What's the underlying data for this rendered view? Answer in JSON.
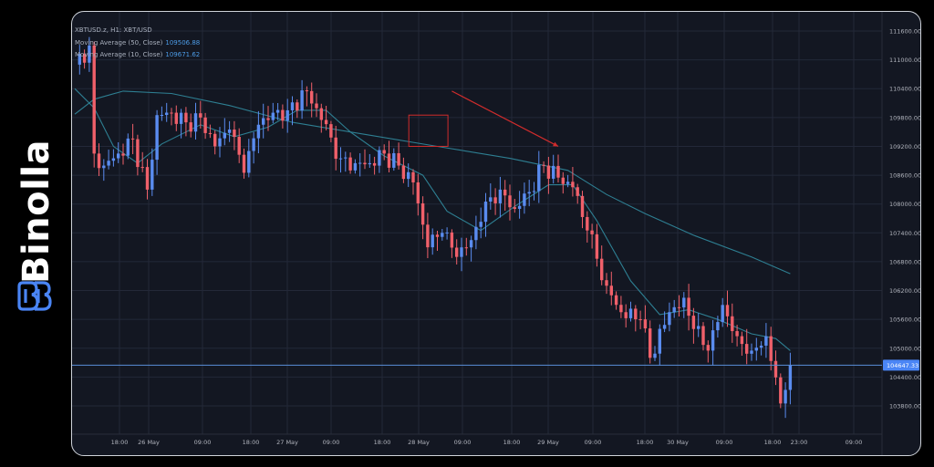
{
  "brand": {
    "name": "Binolla",
    "logo_icon": "binolla-logo-icon"
  },
  "legend": {
    "symbol": "XBTUSD.z, H1: XBT/USD",
    "ma50_label": "Moving Average (50, Close)",
    "ma50_value": "109506.88",
    "ma10_label": "Moving Average (10, Close)",
    "ma10_value": "109671.62"
  },
  "colors": {
    "background": "#131722",
    "bull": "#5a8cf0",
    "bear": "#f0606a",
    "ma": "#2e7f92",
    "price_line": "#5a8ed8",
    "annotation": "#d02c2c",
    "grid": "#232838"
  },
  "chart_data": {
    "type": "candlestick",
    "title": "",
    "xlabel": "",
    "ylabel": "",
    "ylim": [
      103400,
      111800
    ],
    "y_ticks": [
      "111600.00",
      "111000.00",
      "110400.00",
      "109800.00",
      "109200.00",
      "108600.00",
      "108000.00",
      "107400.00",
      "106800.00",
      "106200.00",
      "105600.00",
      "105000.00",
      "104400.00",
      "103800.00"
    ],
    "x_ticks": [
      "18:00",
      "26 May",
      "09:00",
      "18:00",
      "27 May",
      "09:00",
      "18:00",
      "28 May",
      "09:00",
      "18:00",
      "29 May",
      "09:00",
      "18:00",
      "30 May",
      "09:00",
      "18:00",
      "23:00",
      "09:00"
    ],
    "current_price": "104647.33",
    "close_anchors": [
      [
        0,
        110900
      ],
      [
        3,
        111300
      ],
      [
        4,
        109050
      ],
      [
        6,
        108800
      ],
      [
        9,
        109050
      ],
      [
        12,
        109350
      ],
      [
        15,
        108300
      ],
      [
        17,
        109850
      ],
      [
        20,
        109900
      ],
      [
        23,
        109700
      ],
      [
        26,
        109800
      ],
      [
        29,
        109200
      ],
      [
        32,
        109550
      ],
      [
        35,
        108650
      ],
      [
        38,
        109650
      ],
      [
        41,
        109900
      ],
      [
        44,
        109950
      ],
      [
        48,
        110350
      ],
      [
        51,
        109750
      ],
      [
        55,
        108950
      ],
      [
        58,
        108850
      ],
      [
        61,
        108850
      ],
      [
        64,
        109050
      ],
      [
        67,
        108800
      ],
      [
        70,
        108450
      ],
      [
        73,
        107100
      ],
      [
        76,
        107400
      ],
      [
        79,
        106900
      ],
      [
        82,
        107250
      ],
      [
        85,
        108050
      ],
      [
        88,
        108300
      ],
      [
        91,
        107900
      ],
      [
        94,
        108250
      ],
      [
        97,
        108800
      ],
      [
        100,
        108550
      ],
      [
        103,
        108350
      ],
      [
        106,
        107450
      ],
      [
        110,
        106300
      ],
      [
        113,
        105750
      ],
      [
        117,
        105600
      ],
      [
        119,
        104800
      ],
      [
        123,
        105750
      ],
      [
        126,
        106050
      ],
      [
        128,
        105400
      ],
      [
        131,
        104950
      ],
      [
        134,
        105900
      ],
      [
        137,
        105250
      ],
      [
        140,
        104950
      ],
      [
        143,
        105250
      ],
      [
        146,
        103850
      ],
      [
        148,
        104650
      ]
    ],
    "series": [
      {
        "name": "Moving Average (50, Close)",
        "points": [
          [
            0,
            109870
          ],
          [
            4,
            110180
          ],
          [
            10,
            110350
          ],
          [
            20,
            110300
          ],
          [
            32,
            110050
          ],
          [
            45,
            109700
          ],
          [
            60,
            109450
          ],
          [
            75,
            109200
          ],
          [
            90,
            108950
          ],
          [
            102,
            108700
          ],
          [
            110,
            108200
          ],
          [
            118,
            107800
          ],
          [
            128,
            107350
          ],
          [
            140,
            106900
          ],
          [
            148,
            106550
          ]
        ]
      },
      {
        "name": "Moving Average (10, Close)",
        "points": [
          [
            0,
            110400
          ],
          [
            4,
            110000
          ],
          [
            8,
            109200
          ],
          [
            13,
            108850
          ],
          [
            18,
            109250
          ],
          [
            26,
            109650
          ],
          [
            33,
            109400
          ],
          [
            40,
            109600
          ],
          [
            46,
            109950
          ],
          [
            52,
            109950
          ],
          [
            57,
            109500
          ],
          [
            64,
            109000
          ],
          [
            72,
            108600
          ],
          [
            77,
            107850
          ],
          [
            84,
            107450
          ],
          [
            91,
            107950
          ],
          [
            98,
            108400
          ],
          [
            103,
            108400
          ],
          [
            108,
            107650
          ],
          [
            115,
            106400
          ],
          [
            121,
            105700
          ],
          [
            127,
            105800
          ],
          [
            133,
            105600
          ],
          [
            140,
            105300
          ],
          [
            145,
            105200
          ],
          [
            148,
            104950
          ]
        ]
      }
    ],
    "annotations": {
      "rectangle_price": [
        109850,
        109200
      ],
      "arrow_price": [
        110350,
        109200
      ]
    }
  }
}
